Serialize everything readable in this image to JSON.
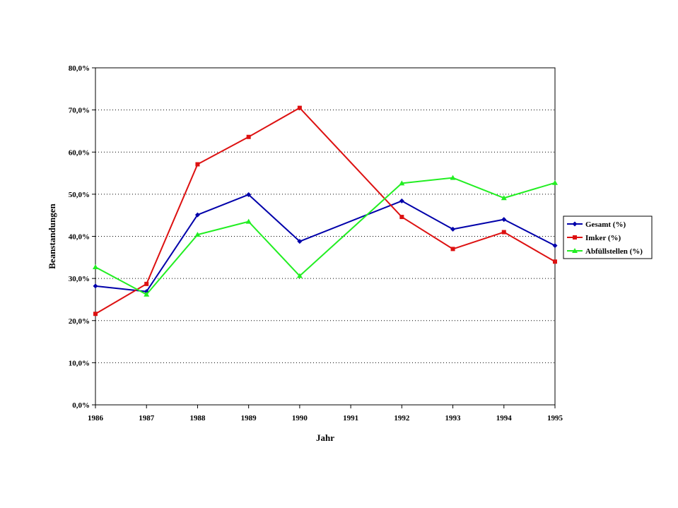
{
  "chart_data": {
    "type": "line",
    "title": "",
    "xlabel": "Jahr",
    "ylabel": "Beanstandungen",
    "categories": [
      "1986",
      "1987",
      "1988",
      "1989",
      "1990",
      "1991",
      "1992",
      "1993",
      "1994",
      "1995"
    ],
    "ylim": [
      0,
      80
    ],
    "yticks": [
      0,
      10,
      20,
      30,
      40,
      50,
      60,
      70,
      80
    ],
    "ytick_labels": [
      "0,0%",
      "10,0%",
      "20,0%",
      "30,0%",
      "40,0%",
      "50,0%",
      "60,0%",
      "70,0%",
      "80,0%"
    ],
    "grid": "horizontal dotted",
    "legend_position": "right",
    "series": [
      {
        "name": "Gesamt (%)",
        "color": "#0000aa",
        "marker": "diamond",
        "values": [
          28.2,
          26.9,
          45.1,
          49.9,
          38.8,
          null,
          48.4,
          41.7,
          44.0,
          37.8
        ]
      },
      {
        "name": "Imker (%)",
        "color": "#dd1111",
        "marker": "square",
        "values": [
          21.6,
          28.7,
          57.1,
          63.6,
          70.5,
          null,
          44.6,
          37.0,
          41.0,
          34.0
        ]
      },
      {
        "name": "Abfüllstellen (%)",
        "color": "#22ee22",
        "marker": "triangle",
        "values": [
          32.7,
          26.2,
          40.4,
          43.5,
          30.6,
          null,
          52.6,
          53.9,
          49.1,
          52.7
        ]
      }
    ]
  }
}
